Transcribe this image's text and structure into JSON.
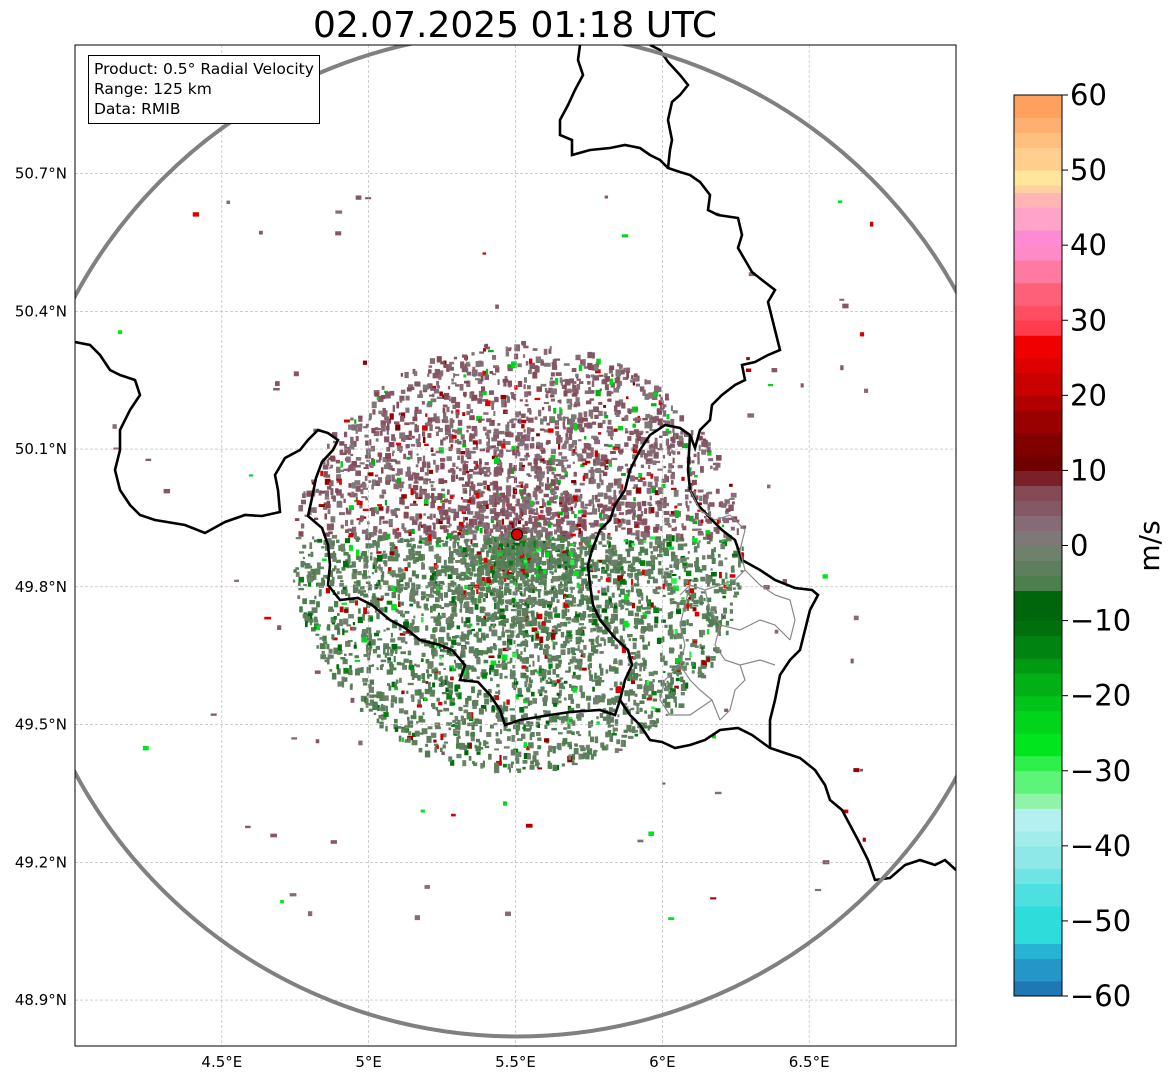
{
  "title": "02.07.2025 01:18 UTC",
  "info_box": {
    "product": "Product: 0.5° Radial Velocity",
    "range": "Range: 125 km",
    "data": "Data: RMIB"
  },
  "map": {
    "lon_range": [
      4.0,
      7.0
    ],
    "lat_range": [
      48.8,
      50.98
    ],
    "x_ticks": [
      {
        "value": 4.5,
        "label": "4.5°E"
      },
      {
        "value": 5.0,
        "label": "5°E"
      },
      {
        "value": 5.5,
        "label": "5.5°E"
      },
      {
        "value": 6.0,
        "label": "6°E"
      },
      {
        "value": 6.5,
        "label": "6.5°E"
      }
    ],
    "y_ticks": [
      {
        "value": 50.7,
        "label": "50.7°N"
      },
      {
        "value": 50.4,
        "label": "50.4°N"
      },
      {
        "value": 50.1,
        "label": "50.1°N"
      },
      {
        "value": 49.8,
        "label": "49.8°N"
      },
      {
        "value": 49.5,
        "label": "49.5°N"
      },
      {
        "value": 49.2,
        "label": "49.2°N"
      },
      {
        "value": 48.9,
        "label": "48.9°N"
      }
    ],
    "radar_site": {
      "lon": 5.505,
      "lat": 49.914
    },
    "range_ring_km": 125,
    "ring_color": "#808080",
    "border_color": "#000000",
    "grid": true
  },
  "colorbar": {
    "label": "m/s",
    "ticks": [
      {
        "value": 60,
        "label": "60"
      },
      {
        "value": 50,
        "label": "50"
      },
      {
        "value": 40,
        "label": "40"
      },
      {
        "value": 30,
        "label": "30"
      },
      {
        "value": 20,
        "label": "20"
      },
      {
        "value": 10,
        "label": "10"
      },
      {
        "value": 0,
        "label": "0"
      },
      {
        "value": -10,
        "label": "−10"
      },
      {
        "value": -20,
        "label": "−20"
      },
      {
        "value": -30,
        "label": "−30"
      },
      {
        "value": -40,
        "label": "−40"
      },
      {
        "value": -50,
        "label": "−50"
      },
      {
        "value": -60,
        "label": "−60"
      }
    ],
    "range": [
      -60,
      60
    ],
    "stops": [
      {
        "from": -60,
        "to": -58,
        "color": "#1f77b4"
      },
      {
        "from": -58,
        "to": -55,
        "color": "#2596c8"
      },
      {
        "from": -55,
        "to": -53,
        "color": "#27b4d4"
      },
      {
        "from": -53,
        "to": -48,
        "color": "#2edcdc"
      },
      {
        "from": -48,
        "to": -45,
        "color": "#4ee0e0"
      },
      {
        "from": -45,
        "to": -43,
        "color": "#6ee4e4"
      },
      {
        "from": -43,
        "to": -40,
        "color": "#8ee8e8"
      },
      {
        "from": -40,
        "to": -38,
        "color": "#a3ecec"
      },
      {
        "from": -38,
        "to": -35,
        "color": "#b5f0f0"
      },
      {
        "from": -35,
        "to": -33,
        "color": "#8ff3a8"
      },
      {
        "from": -33,
        "to": -30,
        "color": "#5cf57a"
      },
      {
        "from": -30,
        "to": -28,
        "color": "#2ff04b"
      },
      {
        "from": -28,
        "to": -25,
        "color": "#00e51e"
      },
      {
        "from": -25,
        "to": -22,
        "color": "#00d41b"
      },
      {
        "from": -22,
        "to": -20,
        "color": "#00c418"
      },
      {
        "from": -20,
        "to": -17,
        "color": "#00b015"
      },
      {
        "from": -17,
        "to": -15,
        "color": "#009912"
      },
      {
        "from": -15,
        "to": -12,
        "color": "#008310"
      },
      {
        "from": -12,
        "to": -10,
        "color": "#00700d"
      },
      {
        "from": -10,
        "to": -6,
        "color": "#00660b"
      },
      {
        "from": -6,
        "to": -4,
        "color": "#4d7e4d"
      },
      {
        "from": -4,
        "to": -2,
        "color": "#5d7f5d"
      },
      {
        "from": -2,
        "to": 0,
        "color": "#6f806b"
      },
      {
        "from": 0,
        "to": 2,
        "color": "#7f7878"
      },
      {
        "from": 2,
        "to": 4,
        "color": "#866a76"
      },
      {
        "from": 4,
        "to": 6,
        "color": "#855866"
      },
      {
        "from": 6,
        "to": 8,
        "color": "#854a55"
      },
      {
        "from": 8,
        "to": 10,
        "color": "#7a2026"
      },
      {
        "from": 10,
        "to": 12,
        "color": "#700000"
      },
      {
        "from": 12,
        "to": 15,
        "color": "#800000"
      },
      {
        "from": 15,
        "to": 18,
        "color": "#990000"
      },
      {
        "from": 18,
        "to": 20,
        "color": "#b00000"
      },
      {
        "from": 20,
        "to": 23,
        "color": "#c80000"
      },
      {
        "from": 23,
        "to": 25,
        "color": "#dc0000"
      },
      {
        "from": 25,
        "to": 28,
        "color": "#f00000"
      },
      {
        "from": 28,
        "to": 30,
        "color": "#ff3d4e"
      },
      {
        "from": 30,
        "to": 32,
        "color": "#ff4d62"
      },
      {
        "from": 32,
        "to": 35,
        "color": "#ff6079"
      },
      {
        "from": 35,
        "to": 38,
        "color": "#ff7aa0"
      },
      {
        "from": 38,
        "to": 40,
        "color": "#ff8ac8"
      },
      {
        "from": 40,
        "to": 42,
        "color": "#ff8ad4"
      },
      {
        "from": 42,
        "to": 45,
        "color": "#ffa3c8"
      },
      {
        "from": 45,
        "to": 47,
        "color": "#ffb5b5"
      },
      {
        "from": 47,
        "to": 48,
        "color": "#ffd0a0"
      },
      {
        "from": 48,
        "to": 50,
        "color": "#ffe69a"
      },
      {
        "from": 50,
        "to": 53,
        "color": "#ffcf90"
      },
      {
        "from": 53,
        "to": 55,
        "color": "#ffc07f"
      },
      {
        "from": 55,
        "to": 57,
        "color": "#ffb070"
      },
      {
        "from": 57,
        "to": 60,
        "color": "#ffa05e"
      }
    ]
  }
}
